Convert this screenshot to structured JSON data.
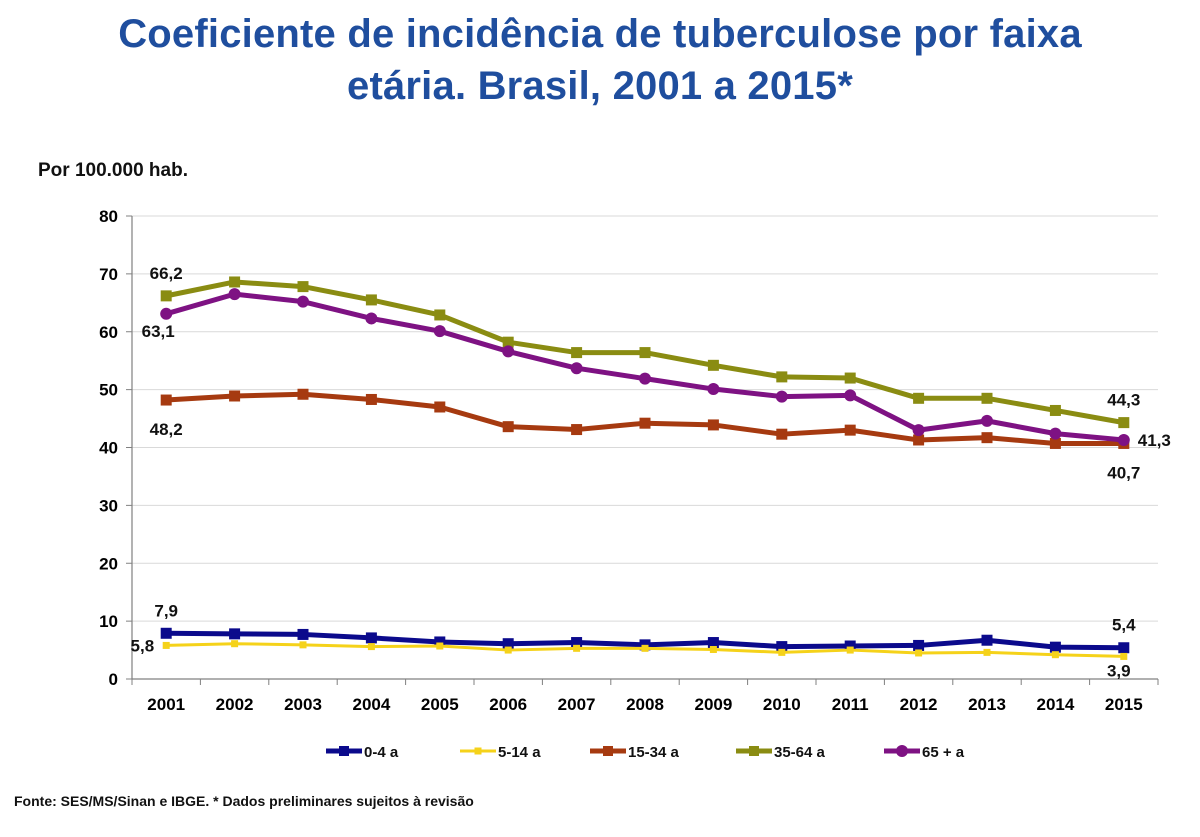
{
  "title_line1": "Coeficiente de incidência de tuberculose por faixa",
  "title_line2": "etária. Brasil, 2001 a 2015*",
  "unit_label": "Por 100.000 hab.",
  "source": "Fonte: SES/MS/Sinan e IBGE. * Dados preliminares sujeitos à revisão",
  "chart_data": {
    "type": "line",
    "title": "Coeficiente de incidência de tuberculose por faixa etária. Brasil, 2001 a 2015*",
    "ylabel": "Por 100.000 hab.",
    "xlabel": "",
    "ylim": [
      0,
      80
    ],
    "yticks": [
      0,
      10,
      20,
      30,
      40,
      50,
      60,
      70,
      80
    ],
    "categories": [
      "2001",
      "2002",
      "2003",
      "2004",
      "2005",
      "2006",
      "2007",
      "2008",
      "2009",
      "2010",
      "2011",
      "2012",
      "2013",
      "2014",
      "2015"
    ],
    "grid": true,
    "legend_position": "bottom",
    "series": [
      {
        "name": "0-4 a",
        "color": "#0b0a8c",
        "marker": "square",
        "values": [
          7.9,
          7.8,
          7.7,
          7.1,
          6.4,
          6.1,
          6.3,
          5.9,
          6.3,
          5.6,
          5.7,
          5.8,
          6.7,
          5.5,
          5.4
        ]
      },
      {
        "name": "5-14 a",
        "color": "#f5d21a",
        "marker": "square",
        "values": [
          5.8,
          6.1,
          5.9,
          5.6,
          5.7,
          5.0,
          5.3,
          5.3,
          5.1,
          4.6,
          5.0,
          4.5,
          4.6,
          4.2,
          3.9
        ]
      },
      {
        "name": "15-34 a",
        "color": "#a63a10",
        "marker": "square",
        "values": [
          48.2,
          48.9,
          49.2,
          48.3,
          47.0,
          43.6,
          43.1,
          44.2,
          43.9,
          42.3,
          43.0,
          41.3,
          41.7,
          40.7,
          40.7
        ]
      },
      {
        "name": "35-64 a",
        "color": "#8a8c12",
        "marker": "square",
        "values": [
          66.2,
          68.6,
          67.8,
          65.5,
          62.9,
          58.2,
          56.4,
          56.4,
          54.2,
          52.2,
          52.0,
          48.5,
          48.5,
          46.4,
          44.3
        ]
      },
      {
        "name": "65 + a",
        "color": "#7e1283",
        "marker": "circle",
        "values": [
          63.1,
          66.5,
          65.2,
          62.3,
          60.1,
          56.6,
          53.7,
          51.9,
          50.1,
          48.8,
          49.0,
          43.0,
          44.6,
          42.4,
          41.3
        ]
      }
    ],
    "annotations": [
      {
        "text": "66,2",
        "series": 3,
        "index": 0,
        "placement": "above"
      },
      {
        "text": "63,1",
        "series": 4,
        "index": 0,
        "placement": "below-left"
      },
      {
        "text": "48,2",
        "series": 2,
        "index": 0,
        "placement": "below"
      },
      {
        "text": "7,9",
        "series": 0,
        "index": 0,
        "placement": "above"
      },
      {
        "text": "5,8",
        "series": 1,
        "index": 0,
        "placement": "left"
      },
      {
        "text": "44,3",
        "series": 3,
        "index": 14,
        "placement": "above"
      },
      {
        "text": "41,3",
        "series": 4,
        "index": 14,
        "placement": "right"
      },
      {
        "text": "40,7",
        "series": 2,
        "index": 14,
        "placement": "below"
      },
      {
        "text": "5,4",
        "series": 0,
        "index": 14,
        "placement": "above"
      },
      {
        "text": "3,9",
        "series": 1,
        "index": 14,
        "placement": "below-left"
      }
    ]
  }
}
